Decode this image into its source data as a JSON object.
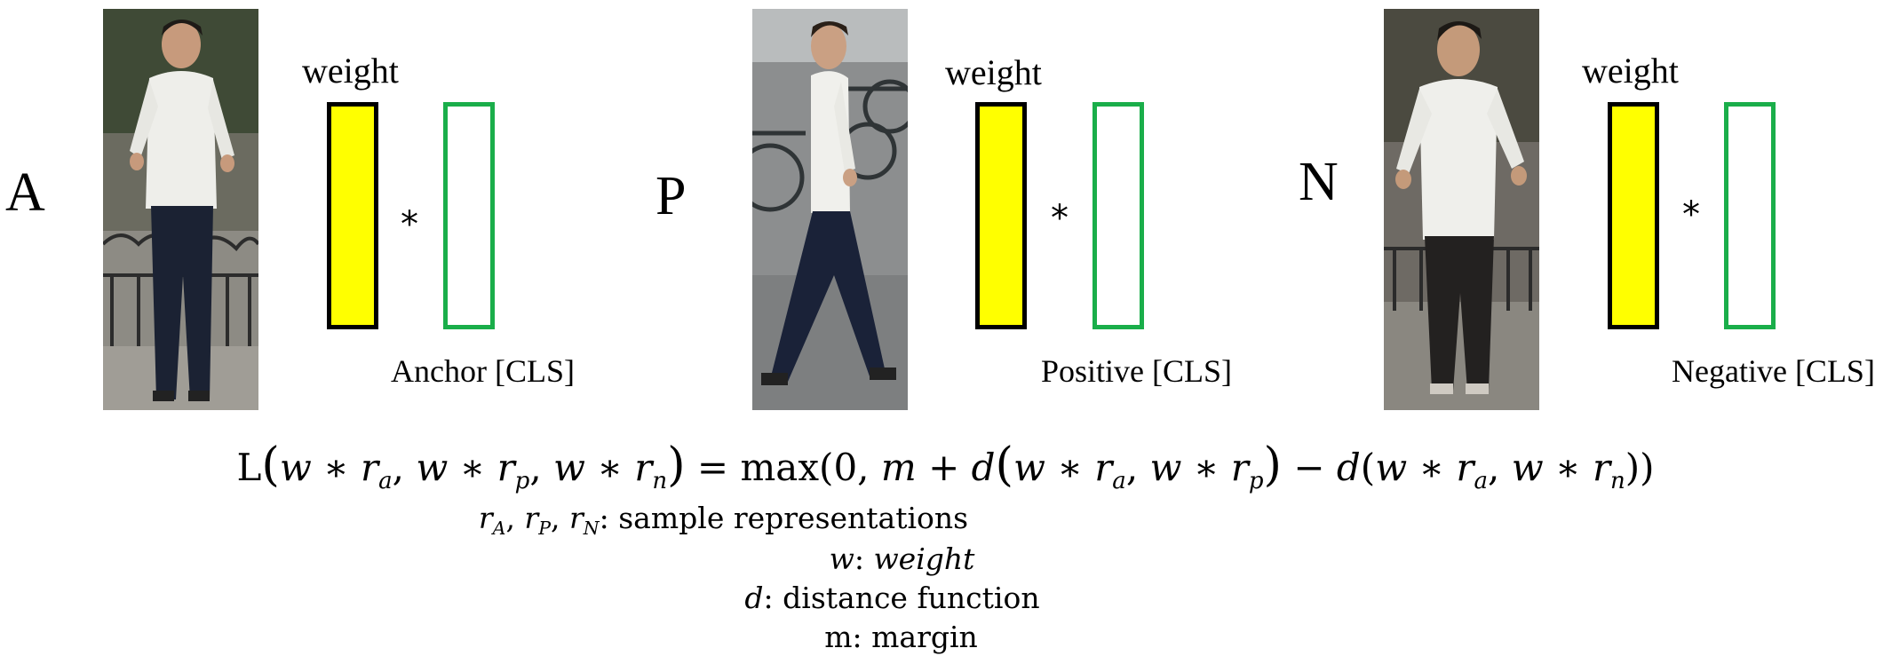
{
  "panels": [
    {
      "letter": "A",
      "weight_label": "weight",
      "star": "*",
      "cls_label": "Anchor [CLS]"
    },
    {
      "letter": "P",
      "weight_label": "weight",
      "star": "*",
      "cls_label": "Positive [CLS]"
    },
    {
      "letter": "N",
      "weight_label": "weight",
      "star": "*",
      "cls_label": "Negative [CLS]"
    }
  ],
  "formula": {
    "lhs": "L",
    "w": "w",
    "r": "r",
    "star": "∗",
    "sub_a": "a",
    "sub_p": "p",
    "sub_n": "n",
    "equals": "=",
    "max": "max",
    "zero": "0",
    "m": "m",
    "plus": "+",
    "minus": "−",
    "d": "d"
  },
  "legend": {
    "r_sub_A": "A",
    "r_sub_P": "P",
    "r_sub_N": "N",
    "r_desc": ": sample representations",
    "w_sym": "w",
    "w_desc": "weight",
    "d_sym": "d",
    "d_desc": ": distance function",
    "m_sym": "m",
    "m_desc": ": margin"
  },
  "colors": {
    "weight_fill": "#ffff00",
    "weight_border": "#000000",
    "cls_border": "#1aae4a"
  }
}
